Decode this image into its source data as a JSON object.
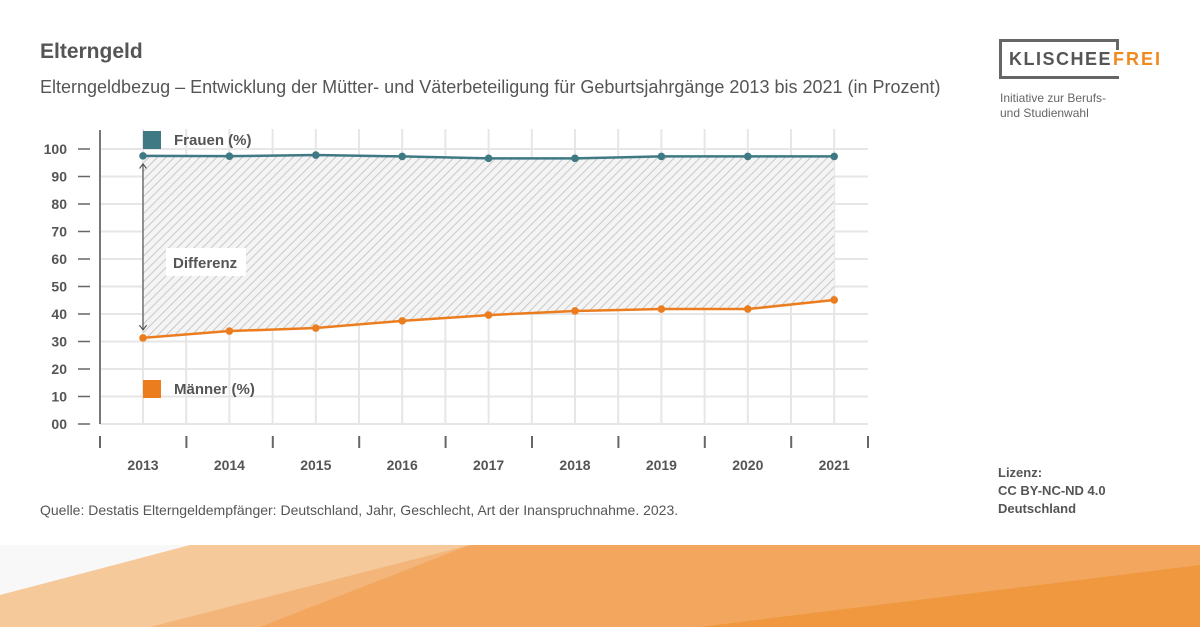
{
  "header": {
    "title": "Elterngeld",
    "subtitle": "Elterngeldbezug – Entwicklung der Mütter- und Väterbeteiligung für Geburtsjahrgänge 2013 bis 2021 (in Prozent)"
  },
  "logo": {
    "text_main": "KLISCHEE",
    "text_accent": "FREI",
    "tagline_1": "Initiative zur Berufs-",
    "tagline_2": "und Studienwahl"
  },
  "source": "Quelle: Destatis Elterngeldempfänger: Deutschland, Jahr, Geschlecht, Art der Inanspruchnahme. 2023.",
  "license": {
    "line1": "Lizenz:",
    "line2": "CC BY-NC-ND 4.0",
    "line3": "Deutschland"
  },
  "colors": {
    "frauen": "#3f7a84",
    "maenner": "#ec7d1f",
    "accent": "#ef8a1e"
  },
  "chart_data": {
    "type": "line",
    "categories": [
      "2013",
      "2014",
      "2015",
      "2016",
      "2017",
      "2018",
      "2019",
      "2020",
      "2021"
    ],
    "yticks": [
      "00",
      "10",
      "20",
      "30",
      "40",
      "50",
      "60",
      "70",
      "80",
      "90",
      "100"
    ],
    "ylim": [
      0,
      100
    ],
    "grid": true,
    "series": [
      {
        "name": "Frauen (%)",
        "color": "#3f7a84",
        "values": [
          97.5,
          97.4,
          97.8,
          97.3,
          96.6,
          96.6,
          97.3,
          97.3,
          97.3
        ]
      },
      {
        "name": "Männer (%)",
        "color": "#ec7d1f",
        "values": [
          31.3,
          33.8,
          34.9,
          37.5,
          39.6,
          41.1,
          41.8,
          41.8,
          45.1
        ]
      }
    ],
    "annotation": "Differenz"
  }
}
